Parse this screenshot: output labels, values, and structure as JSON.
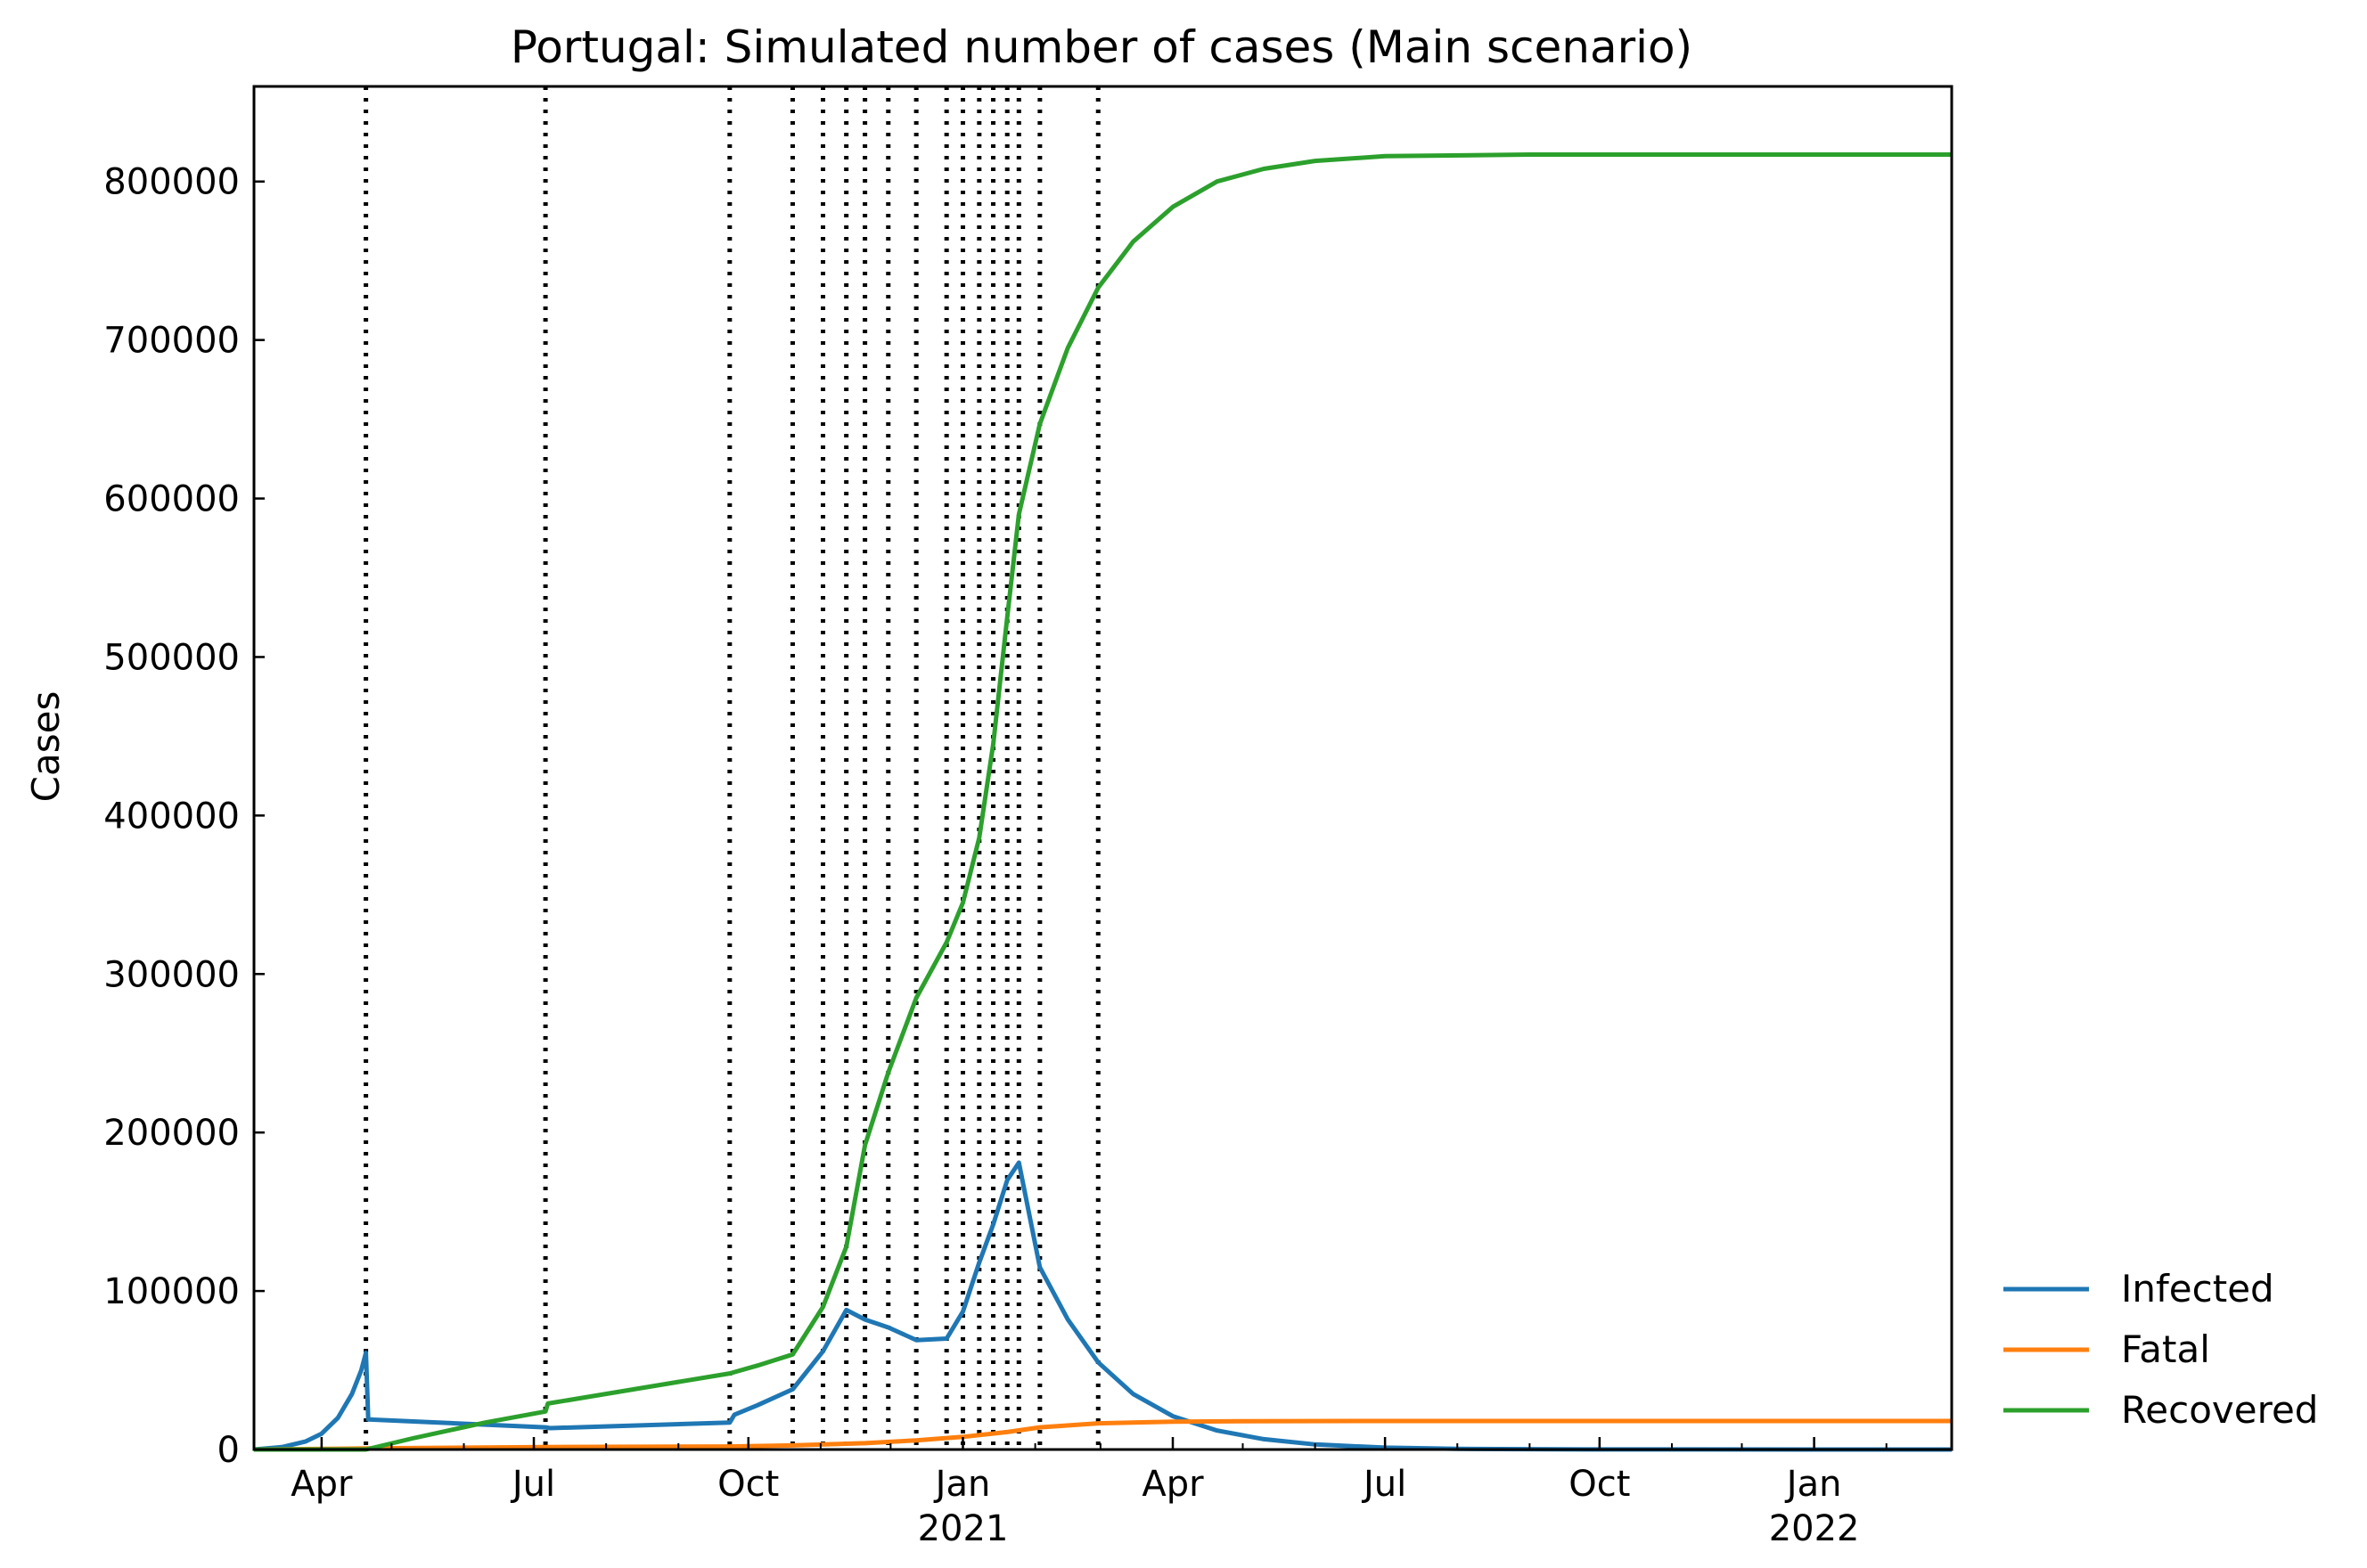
{
  "chart_data": {
    "type": "line",
    "title": "Portugal: Simulated number of cases (Main scenario)",
    "xlabel": "",
    "ylabel": "Cases",
    "xlim": [
      "2020-03-03",
      "2022-03-01"
    ],
    "ylim": [
      0,
      860000
    ],
    "grid": false,
    "legend_position": "right-bottom, outside plot",
    "y_ticks": [
      0,
      100000,
      200000,
      300000,
      400000,
      500000,
      600000,
      700000,
      800000
    ],
    "y_tick_labels": [
      "0",
      "100000",
      "200000",
      "300000",
      "400000",
      "500000",
      "600000",
      "700000",
      "800000"
    ],
    "x_ticks": [
      {
        "date": "2020-04-01",
        "label": "Apr",
        "sub": ""
      },
      {
        "date": "2020-07-01",
        "label": "Jul",
        "sub": ""
      },
      {
        "date": "2020-10-01",
        "label": "Oct",
        "sub": ""
      },
      {
        "date": "2021-01-01",
        "label": "Jan",
        "sub": "2021"
      },
      {
        "date": "2021-04-01",
        "label": "Apr",
        "sub": ""
      },
      {
        "date": "2021-07-01",
        "label": "Jul",
        "sub": ""
      },
      {
        "date": "2021-10-01",
        "label": "Oct",
        "sub": ""
      },
      {
        "date": "2022-01-01",
        "label": "Jan",
        "sub": "2022"
      }
    ],
    "change_dates": [
      "2020-04-20",
      "2020-07-06",
      "2020-09-23",
      "2020-10-20",
      "2020-11-02",
      "2020-11-12",
      "2020-11-20",
      "2020-11-30",
      "2020-12-12",
      "2020-12-25",
      "2021-01-01",
      "2021-01-08",
      "2021-01-14",
      "2021-01-20",
      "2021-01-25",
      "2021-02-03",
      "2021-02-28"
    ],
    "line_colors": {
      "Infected": "#1f77b4",
      "Fatal": "#ff7f0e",
      "Recovered": "#2ca02c"
    },
    "series": [
      {
        "name": "Infected",
        "color": "#1f77b4",
        "points": [
          [
            "2020-03-03",
            0
          ],
          [
            "2020-03-15",
            1500
          ],
          [
            "2020-03-25",
            5000
          ],
          [
            "2020-04-01",
            10000
          ],
          [
            "2020-04-08",
            20000
          ],
          [
            "2020-04-14",
            35000
          ],
          [
            "2020-04-18",
            50000
          ],
          [
            "2020-04-20",
            61000
          ],
          [
            "2020-04-21",
            19000
          ],
          [
            "2020-07-06",
            14000
          ],
          [
            "2020-07-08",
            13500
          ],
          [
            "2020-09-23",
            17000
          ],
          [
            "2020-09-25",
            22000
          ],
          [
            "2020-10-05",
            28000
          ],
          [
            "2020-10-20",
            38000
          ],
          [
            "2020-11-02",
            62000
          ],
          [
            "2020-11-12",
            88000
          ],
          [
            "2020-11-20",
            82000
          ],
          [
            "2020-11-30",
            77000
          ],
          [
            "2020-12-12",
            69000
          ],
          [
            "2020-12-25",
            70000
          ],
          [
            "2021-01-01",
            87000
          ],
          [
            "2021-01-08",
            118000
          ],
          [
            "2021-01-14",
            142000
          ],
          [
            "2021-01-20",
            170000
          ],
          [
            "2021-01-25",
            181000
          ],
          [
            "2021-02-03",
            115000
          ],
          [
            "2021-02-15",
            82000
          ],
          [
            "2021-02-28",
            55000
          ],
          [
            "2021-03-15",
            35000
          ],
          [
            "2021-04-01",
            21000
          ],
          [
            "2021-04-20",
            12000
          ],
          [
            "2021-05-10",
            6500
          ],
          [
            "2021-06-01",
            3200
          ],
          [
            "2021-07-01",
            1200
          ],
          [
            "2021-08-01",
            400
          ],
          [
            "2021-10-01",
            50
          ],
          [
            "2022-03-01",
            0
          ]
        ]
      },
      {
        "name": "Fatal",
        "color": "#ff7f0e",
        "points": [
          [
            "2020-03-03",
            0
          ],
          [
            "2020-04-20",
            700
          ],
          [
            "2020-07-06",
            1600
          ],
          [
            "2020-09-23",
            1900
          ],
          [
            "2020-10-20",
            2600
          ],
          [
            "2020-11-20",
            4000
          ],
          [
            "2020-12-12",
            5800
          ],
          [
            "2021-01-01",
            8000
          ],
          [
            "2021-01-20",
            11000
          ],
          [
            "2021-02-03",
            14000
          ],
          [
            "2021-02-28",
            16500
          ],
          [
            "2021-04-01",
            17600
          ],
          [
            "2021-05-01",
            17900
          ],
          [
            "2021-07-01",
            18000
          ],
          [
            "2022-03-01",
            18000
          ]
        ]
      },
      {
        "name": "Recovered",
        "color": "#2ca02c",
        "points": [
          [
            "2020-03-03",
            0
          ],
          [
            "2020-04-20",
            0
          ],
          [
            "2020-05-10",
            7000
          ],
          [
            "2020-06-10",
            17000
          ],
          [
            "2020-07-06",
            24000
          ],
          [
            "2020-07-07",
            29000
          ],
          [
            "2020-09-23",
            48000
          ],
          [
            "2020-10-05",
            53000
          ],
          [
            "2020-10-20",
            60000
          ],
          [
            "2020-11-02",
            90000
          ],
          [
            "2020-11-12",
            128000
          ],
          [
            "2020-11-20",
            192000
          ],
          [
            "2020-11-30",
            238000
          ],
          [
            "2020-12-12",
            285000
          ],
          [
            "2020-12-25",
            320000
          ],
          [
            "2021-01-01",
            345000
          ],
          [
            "2021-01-08",
            386000
          ],
          [
            "2021-01-14",
            445000
          ],
          [
            "2021-01-20",
            525000
          ],
          [
            "2021-01-25",
            590000
          ],
          [
            "2021-02-03",
            647000
          ],
          [
            "2021-02-15",
            695000
          ],
          [
            "2021-02-28",
            733000
          ],
          [
            "2021-03-15",
            762000
          ],
          [
            "2021-04-01",
            784000
          ],
          [
            "2021-04-20",
            800000
          ],
          [
            "2021-05-10",
            808000
          ],
          [
            "2021-06-01",
            813000
          ],
          [
            "2021-07-01",
            816000
          ],
          [
            "2021-09-01",
            817000
          ],
          [
            "2022-03-01",
            817000
          ]
        ]
      }
    ]
  }
}
